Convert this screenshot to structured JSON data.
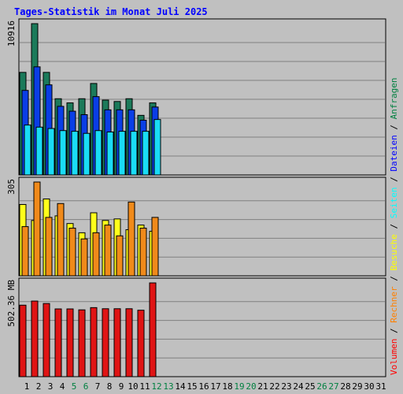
{
  "title": "Tages-Statistik im Monat Juli 2025",
  "right_legend": [
    {
      "text": "Volumen",
      "color": "#ff0000"
    },
    {
      "text": " / ",
      "color": "#000000"
    },
    {
      "text": "Rechner",
      "color": "#ff8000"
    },
    {
      "text": " / ",
      "color": "#000000"
    },
    {
      "text": "Besuche",
      "color": "#ffff00"
    },
    {
      "text": " / ",
      "color": "#000000"
    },
    {
      "text": "Seiten",
      "color": "#00ffff"
    },
    {
      "text": " / ",
      "color": "#000000"
    },
    {
      "text": "Dateien",
      "color": "#0000ff"
    },
    {
      "text": " / ",
      "color": "#000000"
    },
    {
      "text": "Anfragen",
      "color": "#008040"
    }
  ],
  "colors": {
    "background": "#c0c0c0",
    "anfragen": "#1b7a5a",
    "dateien": "#0a3ee6",
    "seiten": "#1adcf5",
    "besuche": "#ffff1a",
    "rechner": "#f08a1a",
    "volumen": "#e01414",
    "title": "#0000ff",
    "weekend_day": "#008040",
    "today_day": "#008040"
  },
  "chart_data": {
    "type": "bar",
    "title": "Tages-Statistik im Monat Juli 2025",
    "x_categories": [
      "1",
      "2",
      "3",
      "4",
      "5",
      "6",
      "7",
      "8",
      "9",
      "10",
      "11",
      "12",
      "13",
      "14",
      "15",
      "16",
      "17",
      "18",
      "19",
      "20",
      "21",
      "22",
      "23",
      "24",
      "25",
      "26",
      "27",
      "28",
      "29",
      "30",
      "31"
    ],
    "highlighted_days": [
      "5",
      "6",
      "12",
      "13",
      "19",
      "20",
      "26",
      "27"
    ],
    "panels": [
      {
        "name": "requests",
        "max_label": "10916",
        "ymax": 10916,
        "series": [
          {
            "name": "Anfragen",
            "values": [
              7400,
              10916,
              7400,
              5500,
              5200,
              5500,
              6600,
              5400,
              5300,
              5500,
              4300,
              5200
            ]
          },
          {
            "name": "Dateien",
            "values": [
              6100,
              7800,
              6500,
              4950,
              4600,
              4350,
              5650,
              4700,
              4700,
              4700,
              3950,
              4900
            ]
          },
          {
            "name": "Seiten",
            "values": [
              3600,
              3450,
              3350,
              3200,
              3150,
              3000,
              3200,
              3100,
              3150,
              3150,
              3150,
              4000
            ]
          }
        ]
      },
      {
        "name": "visits",
        "max_label": "305",
        "ymax": 305,
        "series": [
          {
            "name": "Besuche",
            "values": [
              232,
              180,
              250,
              195,
              170,
              140,
              205,
              180,
              185,
              150,
              165,
              145
            ]
          },
          {
            "name": "Rechner",
            "values": [
              160,
              305,
              190,
              235,
              155,
              120,
              140,
              165,
              130,
              240,
              155,
              190
            ]
          }
        ]
      },
      {
        "name": "volume",
        "max_label": "502.36 MB",
        "ymax": 502.36,
        "series": [
          {
            "name": "Volumen",
            "values": [
              383,
              405,
              392,
              363,
              363,
              358,
              370,
              364,
              364,
              364,
              356,
              502.36
            ]
          }
        ]
      }
    ]
  }
}
